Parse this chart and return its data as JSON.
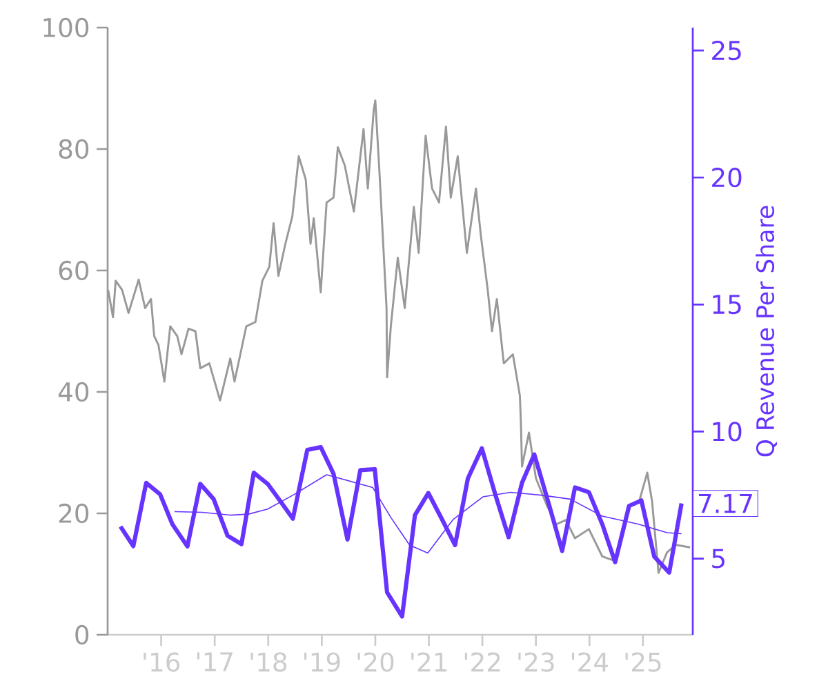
{
  "chart_data": {
    "type": "line",
    "y2label": "Q Revenue Per Share",
    "xlim": [
      2015.0,
      2025.93
    ],
    "xticks": [
      {
        "value": 2016,
        "label": "'16"
      },
      {
        "value": 2017,
        "label": "'17"
      },
      {
        "value": 2018,
        "label": "'18"
      },
      {
        "value": 2019,
        "label": "'19"
      },
      {
        "value": 2020,
        "label": "'20"
      },
      {
        "value": 2021,
        "label": "'21"
      },
      {
        "value": 2022,
        "label": "'22"
      },
      {
        "value": 2023,
        "label": "'23"
      },
      {
        "value": 2024,
        "label": "'24"
      },
      {
        "value": 2025,
        "label": "'25"
      }
    ],
    "ylim": [
      0,
      100
    ],
    "yticks": [
      0,
      20,
      40,
      60,
      80,
      100
    ],
    "y2lim": [
      2,
      25.9
    ],
    "y2ticks": [
      5,
      10,
      15,
      20,
      25
    ],
    "marker": "none",
    "line_style": "solid",
    "annotations": [
      "7.17"
    ],
    "series": [
      {
        "color": "#999999",
        "axis": "y",
        "x": [
          2015.01,
          2015.1,
          2015.15,
          2015.27,
          2015.39,
          2015.58,
          2015.7,
          2015.81,
          2015.87,
          2015.95,
          2016.06,
          2016.17,
          2016.3,
          2016.38,
          2016.51,
          2016.64,
          2016.73,
          2016.9,
          2017.1,
          2017.29,
          2017.37,
          2017.59,
          2017.76,
          2017.89,
          2018.02,
          2018.1,
          2018.19,
          2018.32,
          2018.45,
          2018.57,
          2018.7,
          2018.79,
          2018.85,
          2018.98,
          2019.09,
          2019.22,
          2019.3,
          2019.43,
          2019.6,
          2019.78,
          2019.86,
          2019.97,
          2020.0,
          2020.08,
          2020.21,
          2020.22,
          2020.29,
          2020.42,
          2020.55,
          2020.72,
          2020.81,
          2020.94,
          2021.06,
          2021.19,
          2021.32,
          2021.41,
          2021.54,
          2021.71,
          2021.88,
          2021.97,
          2022.1,
          2022.18,
          2022.27,
          2022.4,
          2022.57,
          2022.7,
          2022.72,
          2022.74,
          2022.87,
          2023.0,
          2023.21,
          2023.38,
          2023.56,
          2023.73,
          2023.99,
          2024.24,
          2024.5,
          2024.76,
          2024.93,
          2025.08,
          2025.17,
          2025.29,
          2025.45,
          2025.62,
          2025.88
        ],
        "values": [
          56.8,
          52.3,
          58.3,
          56.8,
          53.0,
          58.5,
          53.8,
          55.3,
          49.2,
          47.7,
          41.7,
          50.8,
          49.2,
          46.2,
          50.4,
          50.0,
          43.9,
          44.7,
          38.6,
          45.5,
          41.7,
          50.8,
          51.5,
          58.3,
          60.6,
          67.8,
          59.1,
          64.4,
          68.9,
          78.8,
          75.0,
          64.4,
          68.6,
          56.4,
          71.2,
          72.0,
          80.3,
          77.3,
          69.7,
          83.3,
          73.5,
          86.4,
          88.0,
          75.8,
          53.8,
          42.4,
          50.8,
          62.1,
          53.8,
          70.5,
          62.9,
          82.2,
          73.5,
          71.2,
          83.7,
          72.0,
          78.8,
          62.9,
          73.5,
          65.9,
          56.8,
          50.0,
          55.3,
          44.7,
          46.2,
          39.4,
          34.8,
          27.7,
          33.3,
          25.8,
          21.2,
          18.2,
          18.9,
          15.9,
          17.4,
          12.9,
          12.1,
          21.2,
          22.0,
          26.7,
          22.0,
          10.2,
          13.6,
          14.8,
          14.4
        ]
      },
      {
        "color": "#6633ff",
        "axis": "y2",
        "x": [
          2015.24,
          2015.48,
          2015.72,
          2015.98,
          2016.21,
          2016.49,
          2016.73,
          2016.98,
          2017.24,
          2017.5,
          2017.73,
          2017.99,
          2018.23,
          2018.46,
          2018.73,
          2018.98,
          2019.22,
          2019.48,
          2019.72,
          2019.99,
          2020.22,
          2020.5,
          2020.74,
          2020.99,
          2021.24,
          2021.49,
          2021.73,
          2021.99,
          2022.24,
          2022.49,
          2022.74,
          2022.97,
          2023.24,
          2023.49,
          2023.73,
          2023.99,
          2024.24,
          2024.48,
          2024.74,
          2024.97,
          2025.21,
          2025.49,
          2025.72
        ],
        "values": [
          6.26,
          5.49,
          7.98,
          7.53,
          6.35,
          5.48,
          7.94,
          7.34,
          5.9,
          5.57,
          8.38,
          7.94,
          7.25,
          6.57,
          9.28,
          9.39,
          8.34,
          5.75,
          8.48,
          8.52,
          3.67,
          2.72,
          6.71,
          7.58,
          6.57,
          5.53,
          8.16,
          9.34,
          7.53,
          5.84,
          7.98,
          9.1,
          7.16,
          5.3,
          7.8,
          7.61,
          6.35,
          4.86,
          7.07,
          7.29,
          5.08,
          4.45,
          7.17
        ]
      },
      {
        "color": "#6633ff",
        "axis": "y2",
        "x": [
          2016.25,
          2016.77,
          2017.29,
          2017.63,
          2017.99,
          2018.49,
          2019.09,
          2019.95,
          2020.29,
          2020.64,
          2020.98,
          2021.45,
          2022.01,
          2022.53,
          2023.13,
          2023.64,
          2024.24,
          2024.92,
          2025.45,
          2025.72
        ],
        "values": [
          6.85,
          6.82,
          6.71,
          6.75,
          6.95,
          7.53,
          8.3,
          7.8,
          6.62,
          5.53,
          5.22,
          6.53,
          7.43,
          7.61,
          7.49,
          7.34,
          6.67,
          6.35,
          6.02,
          5.98
        ]
      }
    ]
  }
}
